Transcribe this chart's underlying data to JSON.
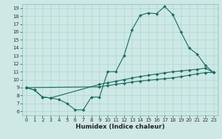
{
  "xlabel": "Humidex (Indice chaleur)",
  "bg_color": "#cde8e5",
  "line_color": "#1a6b60",
  "grid_color": "#add4cf",
  "xlim": [
    -0.5,
    23.5
  ],
  "ylim": [
    5.5,
    19.5
  ],
  "xticks": [
    0,
    1,
    2,
    3,
    4,
    5,
    6,
    7,
    8,
    9,
    10,
    11,
    12,
    13,
    14,
    15,
    16,
    17,
    18,
    19,
    20,
    21,
    22,
    23
  ],
  "yticks": [
    6,
    7,
    8,
    9,
    10,
    11,
    12,
    13,
    14,
    15,
    16,
    17,
    18,
    19
  ],
  "curve1_x": [
    0,
    1,
    2,
    3,
    4,
    5,
    6,
    7,
    8,
    9,
    10,
    11,
    12,
    13,
    14,
    15,
    16,
    17,
    18,
    19,
    20,
    21,
    22,
    23
  ],
  "curve1_y": [
    9.0,
    8.7,
    7.8,
    7.7,
    7.5,
    7.0,
    6.2,
    6.2,
    7.8,
    7.8,
    11.0,
    11.0,
    13.0,
    16.3,
    18.1,
    18.4,
    18.3,
    19.2,
    18.2,
    16.0,
    14.0,
    13.2,
    11.8,
    10.9
  ],
  "curve2_x": [
    0,
    1,
    2,
    3,
    9,
    10,
    11,
    12,
    13,
    14,
    15,
    16,
    17,
    18,
    19,
    20,
    21,
    22,
    23
  ],
  "curve2_y": [
    9.0,
    8.7,
    7.8,
    7.7,
    9.4,
    9.6,
    9.8,
    10.0,
    10.2,
    10.4,
    10.55,
    10.7,
    10.85,
    11.0,
    11.1,
    11.2,
    11.3,
    11.45,
    10.9
  ],
  "curve3_x": [
    0,
    9,
    10,
    11,
    12,
    13,
    14,
    15,
    16,
    17,
    18,
    19,
    20,
    21,
    22,
    23
  ],
  "curve3_y": [
    9.0,
    9.1,
    9.25,
    9.4,
    9.55,
    9.7,
    9.82,
    9.92,
    10.02,
    10.12,
    10.22,
    10.38,
    10.55,
    10.72,
    10.88,
    10.9
  ],
  "xlabel_fontsize": 6.5,
  "tick_fontsize": 5.2,
  "linewidth": 0.85,
  "markersize": 2.2
}
